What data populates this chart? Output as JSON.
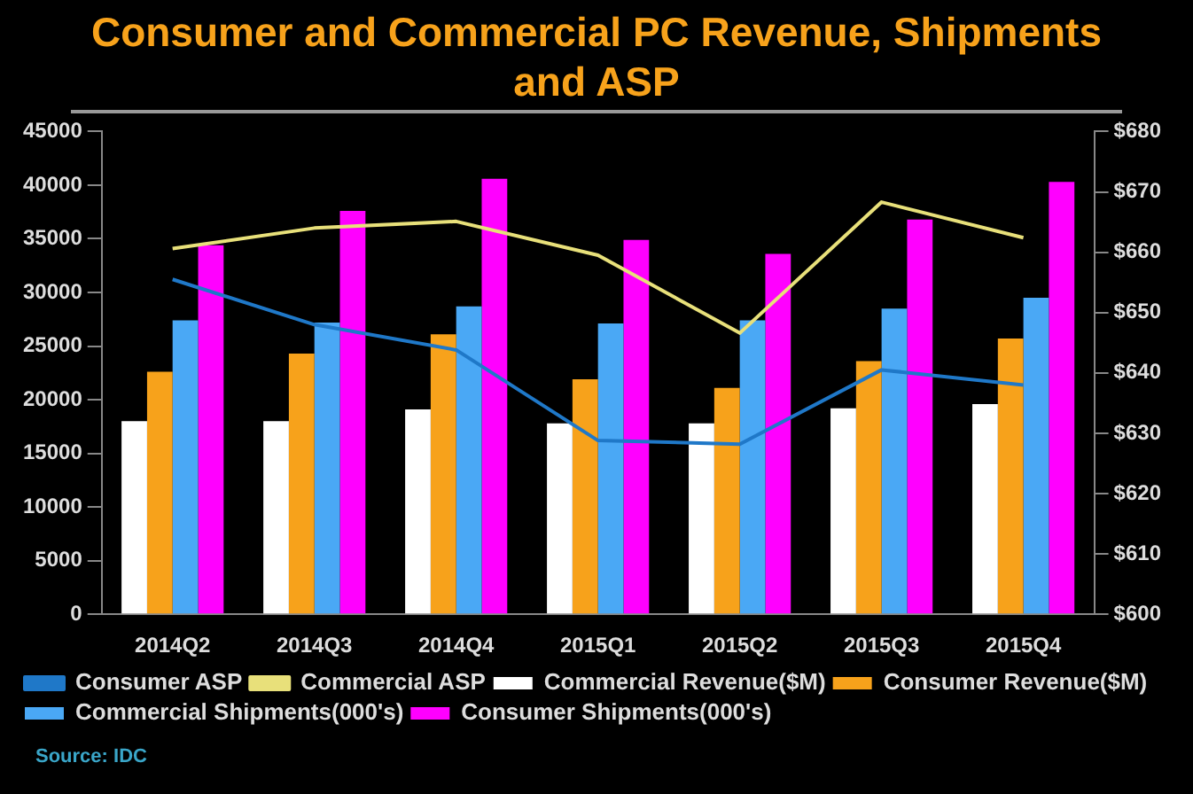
{
  "chart_data": {
    "type": "bar",
    "title": "Consumer and Commercial PC Revenue, Shipments and ASP",
    "categories": [
      "2014Q2",
      "2014Q3",
      "2014Q4",
      "2015Q1",
      "2015Q2",
      "2015Q3",
      "2015Q4"
    ],
    "series": [
      {
        "name": "Commercial Revenue($M)",
        "color": "#ffffff",
        "values": [
          18000,
          18000,
          19100,
          17800,
          17800,
          19200,
          19600
        ]
      },
      {
        "name": "Consumer Revenue($M)",
        "color": "#f7a21b",
        "values": [
          22600,
          24300,
          26100,
          21900,
          21100,
          23600,
          25700
        ]
      },
      {
        "name": "Commercial Shipments(000's)",
        "color": "#4aa8f5",
        "values": [
          27400,
          27200,
          28700,
          27100,
          27400,
          28500,
          29500
        ]
      },
      {
        "name": "Consumer Shipments(000's)",
        "color": "#ff00ff",
        "values": [
          34400,
          37600,
          40600,
          34900,
          33600,
          36800,
          40300
        ]
      },
      {
        "name": "Consumer ASP",
        "type": "line",
        "axis": "y2",
        "color": "#1f78c8",
        "values": [
          655.5,
          648,
          643.8,
          628.8,
          628.2,
          640.5,
          638
        ]
      },
      {
        "name": "Commercial ASP",
        "type": "line",
        "axis": "y2",
        "color": "#e8e07a",
        "values": [
          660.6,
          664,
          665.1,
          659.5,
          646.6,
          668.3,
          662.4
        ]
      }
    ],
    "ylim": [
      0,
      45000
    ],
    "yticks": [
      0,
      5000,
      10000,
      15000,
      20000,
      25000,
      30000,
      35000,
      40000,
      45000
    ],
    "y2lim": [
      600,
      680
    ],
    "y2ticks": [
      {
        "value": 600,
        "label": "$600"
      },
      {
        "value": 610,
        "label": "$610"
      },
      {
        "value": 620,
        "label": "$620"
      },
      {
        "value": 630,
        "label": "$630"
      },
      {
        "value": 640,
        "label": "$640"
      },
      {
        "value": 650,
        "label": "$650"
      },
      {
        "value": 660,
        "label": "$660"
      },
      {
        "value": 670,
        "label": "$670"
      },
      {
        "value": 680,
        "label": "$680"
      }
    ],
    "grid": false,
    "legend": "bottom",
    "marker": "none",
    "annotations": [
      "Source: IDC"
    ]
  }
}
